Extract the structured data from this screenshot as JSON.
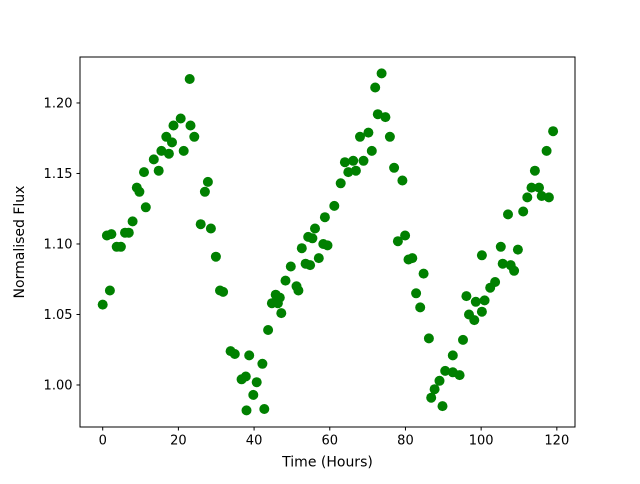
{
  "figure": {
    "background": "#ffffff"
  },
  "chart_data": {
    "type": "scatter",
    "title": "",
    "xlabel": "Time (Hours)",
    "ylabel": "Normalised Flux",
    "marker_color": "#008000",
    "marker_radius_px": 5,
    "grid": false,
    "legend": null,
    "x_axis": {
      "ticks": [
        0,
        20,
        40,
        60,
        80,
        100,
        120
      ],
      "tick_labels": [
        "0",
        "20",
        "40",
        "60",
        "80",
        "100",
        "120"
      ],
      "lim": [
        -6.0,
        124.8
      ]
    },
    "y_axis": {
      "ticks": [
        1.0,
        1.05,
        1.1,
        1.15,
        1.2
      ],
      "tick_labels": [
        "1.00",
        "1.05",
        "1.10",
        "1.15",
        "1.20"
      ],
      "lim": [
        0.9702,
        1.2326
      ]
    },
    "series": [
      {
        "name": "normalised-flux-vs-time",
        "points": [
          [
            0.0,
            1.057
          ],
          [
            1.1,
            1.106
          ],
          [
            1.9,
            1.067
          ],
          [
            2.3,
            1.107
          ],
          [
            3.7,
            1.098
          ],
          [
            4.8,
            1.098
          ],
          [
            5.9,
            1.108
          ],
          [
            6.9,
            1.108
          ],
          [
            7.9,
            1.116
          ],
          [
            9.0,
            1.14
          ],
          [
            9.7,
            1.137
          ],
          [
            10.9,
            1.151
          ],
          [
            11.4,
            1.126
          ],
          [
            13.5,
            1.16
          ],
          [
            14.8,
            1.152
          ],
          [
            15.5,
            1.166
          ],
          [
            16.8,
            1.176
          ],
          [
            17.5,
            1.164
          ],
          [
            18.3,
            1.172
          ],
          [
            18.7,
            1.184
          ],
          [
            20.6,
            1.189
          ],
          [
            21.4,
            1.166
          ],
          [
            23.0,
            1.217
          ],
          [
            23.2,
            1.184
          ],
          [
            24.2,
            1.176
          ],
          [
            25.9,
            1.114
          ],
          [
            27.0,
            1.137
          ],
          [
            27.8,
            1.144
          ],
          [
            28.6,
            1.111
          ],
          [
            29.9,
            1.091
          ],
          [
            31.0,
            1.067
          ],
          [
            31.8,
            1.066
          ],
          [
            33.8,
            1.024
          ],
          [
            34.9,
            1.022
          ],
          [
            36.7,
            1.004
          ],
          [
            37.8,
            1.006
          ],
          [
            38.0,
            0.982
          ],
          [
            38.7,
            1.021
          ],
          [
            39.8,
            0.993
          ],
          [
            40.7,
            1.002
          ],
          [
            42.2,
            1.015
          ],
          [
            42.7,
            0.983
          ],
          [
            43.7,
            1.039
          ],
          [
            44.7,
            1.058
          ],
          [
            45.7,
            1.064
          ],
          [
            46.3,
            1.058
          ],
          [
            46.8,
            1.062
          ],
          [
            47.2,
            1.051
          ],
          [
            48.3,
            1.074
          ],
          [
            49.7,
            1.084
          ],
          [
            51.2,
            1.07
          ],
          [
            51.7,
            1.067
          ],
          [
            52.6,
            1.097
          ],
          [
            53.6,
            1.086
          ],
          [
            54.3,
            1.105
          ],
          [
            54.8,
            1.085
          ],
          [
            55.4,
            1.104
          ],
          [
            56.1,
            1.111
          ],
          [
            57.1,
            1.09
          ],
          [
            58.3,
            1.1
          ],
          [
            58.7,
            1.119
          ],
          [
            59.4,
            1.099
          ],
          [
            61.2,
            1.127
          ],
          [
            62.9,
            1.143
          ],
          [
            64.0,
            1.158
          ],
          [
            64.9,
            1.151
          ],
          [
            66.2,
            1.159
          ],
          [
            66.9,
            1.152
          ],
          [
            68.0,
            1.176
          ],
          [
            68.9,
            1.159
          ],
          [
            70.2,
            1.179
          ],
          [
            71.1,
            1.166
          ],
          [
            72.0,
            1.211
          ],
          [
            72.7,
            1.192
          ],
          [
            73.7,
            1.221
          ],
          [
            74.7,
            1.19
          ],
          [
            75.9,
            1.176
          ],
          [
            77.0,
            1.154
          ],
          [
            78.0,
            1.102
          ],
          [
            79.2,
            1.145
          ],
          [
            79.9,
            1.106
          ],
          [
            80.8,
            1.089
          ],
          [
            81.8,
            1.09
          ],
          [
            82.8,
            1.065
          ],
          [
            83.9,
            1.055
          ],
          [
            84.8,
            1.079
          ],
          [
            86.2,
            1.033
          ],
          [
            86.8,
            0.991
          ],
          [
            87.7,
            0.997
          ],
          [
            89.0,
            1.003
          ],
          [
            89.8,
            0.985
          ],
          [
            90.5,
            1.01
          ],
          [
            92.5,
            1.009
          ],
          [
            92.5,
            1.021
          ],
          [
            94.3,
            1.007
          ],
          [
            95.2,
            1.032
          ],
          [
            96.1,
            1.063
          ],
          [
            96.8,
            1.05
          ],
          [
            98.2,
            1.046
          ],
          [
            98.6,
            1.059
          ],
          [
            100.2,
            1.052
          ],
          [
            100.2,
            1.092
          ],
          [
            100.9,
            1.06
          ],
          [
            102.4,
            1.069
          ],
          [
            103.7,
            1.073
          ],
          [
            105.2,
            1.098
          ],
          [
            105.7,
            1.086
          ],
          [
            107.1,
            1.121
          ],
          [
            107.8,
            1.085
          ],
          [
            108.7,
            1.081
          ],
          [
            109.7,
            1.096
          ],
          [
            111.1,
            1.123
          ],
          [
            112.2,
            1.133
          ],
          [
            113.3,
            1.14
          ],
          [
            114.2,
            1.152
          ],
          [
            115.3,
            1.14
          ],
          [
            116.0,
            1.134
          ],
          [
            117.3,
            1.166
          ],
          [
            117.9,
            1.133
          ],
          [
            119.0,
            1.18
          ]
        ]
      }
    ]
  }
}
